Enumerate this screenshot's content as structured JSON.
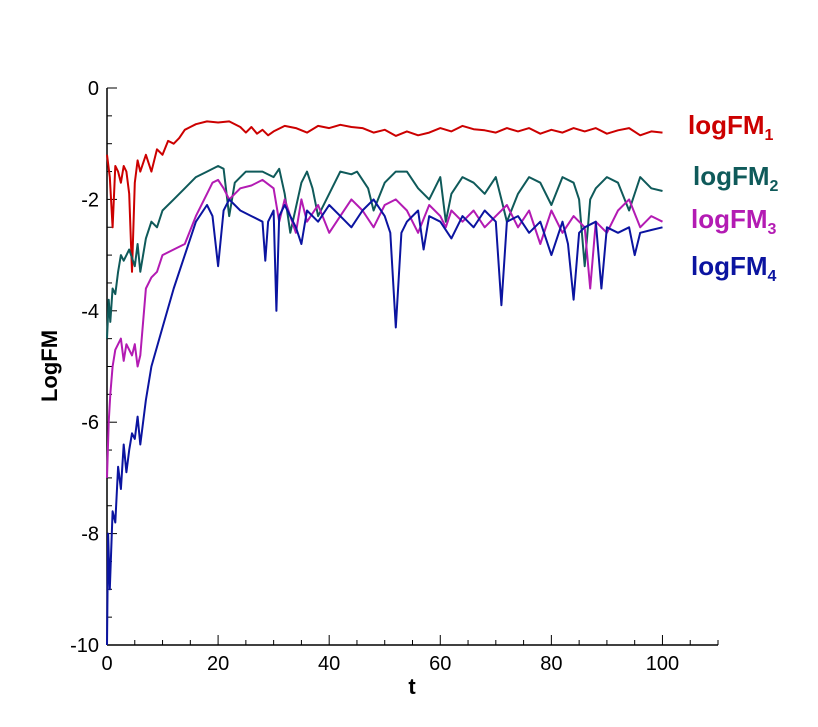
{
  "chart_data": {
    "type": "line",
    "title": "",
    "xlabel": "t",
    "ylabel": "LogFM",
    "xlim": [
      0,
      110
    ],
    "ylim": [
      -10,
      0
    ],
    "x_ticks": [
      "0",
      "20",
      "40",
      "60",
      "80",
      "100"
    ],
    "y_ticks": [
      "-10",
      "-8",
      "-6",
      "-4",
      "-2",
      "0"
    ],
    "grid": false,
    "legend_placement": "right",
    "series": [
      {
        "name": "logFM1",
        "label_main": "logFM",
        "label_sub": "1",
        "color": "#cc0000",
        "x": [
          0,
          0.5,
          1,
          1.5,
          2,
          2.5,
          3,
          3.5,
          4,
          4.5,
          5,
          5.5,
          6,
          7,
          8,
          9,
          10,
          11,
          12,
          13,
          14,
          15,
          16,
          18,
          20,
          22,
          24,
          25,
          26,
          27,
          28,
          29,
          30,
          32,
          34,
          36,
          38,
          40,
          42,
          44,
          46,
          48,
          50,
          52,
          54,
          56,
          58,
          60,
          62,
          64,
          66,
          68,
          70,
          72,
          74,
          76,
          78,
          80,
          82,
          84,
          86,
          88,
          90,
          92,
          94,
          96,
          98,
          100
        ],
        "y": [
          -1.2,
          -1.6,
          -2.5,
          -1.4,
          -1.5,
          -1.7,
          -1.4,
          -1.5,
          -1.9,
          -3.3,
          -1.7,
          -1.3,
          -1.5,
          -1.2,
          -1.5,
          -1.1,
          -1.2,
          -0.95,
          -1.0,
          -0.9,
          -0.75,
          -0.7,
          -0.65,
          -0.6,
          -0.62,
          -0.6,
          -0.7,
          -0.8,
          -0.7,
          -0.82,
          -0.75,
          -0.85,
          -0.78,
          -0.68,
          -0.72,
          -0.8,
          -0.68,
          -0.72,
          -0.66,
          -0.7,
          -0.72,
          -0.8,
          -0.75,
          -0.86,
          -0.78,
          -0.85,
          -0.8,
          -0.72,
          -0.78,
          -0.68,
          -0.74,
          -0.76,
          -0.8,
          -0.72,
          -0.78,
          -0.72,
          -0.82,
          -0.75,
          -0.8,
          -0.72,
          -0.78,
          -0.72,
          -0.82,
          -0.76,
          -0.72,
          -0.85,
          -0.78,
          -0.8
        ]
      },
      {
        "name": "logFM2",
        "label_main": "logFM",
        "label_sub": "2",
        "color": "#0f5a5a",
        "x": [
          0,
          0.3,
          0.6,
          1,
          1.5,
          2,
          2.5,
          3,
          4,
          5,
          5.5,
          6,
          7,
          8,
          9,
          10,
          12,
          14,
          16,
          18,
          20,
          21,
          22,
          23,
          25,
          28,
          30,
          31,
          32,
          33,
          35,
          36,
          37,
          38,
          40,
          42,
          44,
          45,
          47,
          48,
          50,
          52,
          54,
          56,
          58,
          60,
          61,
          62,
          64,
          66,
          68,
          70,
          71,
          72,
          74,
          76,
          78,
          80,
          82,
          84,
          85,
          86,
          87,
          88,
          90,
          92,
          94,
          96,
          98,
          100
        ],
        "y": [
          -4.5,
          -3.8,
          -4.2,
          -3.6,
          -3.7,
          -3.3,
          -3.0,
          -3.1,
          -2.9,
          -3.2,
          -2.8,
          -3.3,
          -2.7,
          -2.4,
          -2.5,
          -2.2,
          -2.0,
          -1.8,
          -1.6,
          -1.5,
          -1.4,
          -1.45,
          -2.3,
          -1.7,
          -1.5,
          -1.5,
          -1.6,
          -1.45,
          -1.9,
          -2.6,
          -1.7,
          -1.5,
          -1.8,
          -2.3,
          -1.9,
          -1.5,
          -1.55,
          -1.5,
          -1.8,
          -2.2,
          -1.7,
          -1.5,
          -1.5,
          -1.8,
          -2.0,
          -1.6,
          -2.4,
          -1.9,
          -1.6,
          -1.7,
          -1.9,
          -1.6,
          -2.0,
          -2.4,
          -1.9,
          -1.6,
          -1.7,
          -2.1,
          -1.6,
          -1.7,
          -2.0,
          -3.2,
          -2.0,
          -1.8,
          -1.6,
          -1.7,
          -2.2,
          -1.6,
          -1.8,
          -1.85
        ]
      },
      {
        "name": "logFM3",
        "label_main": "logFM",
        "label_sub": "3",
        "color": "#b31bb3",
        "x": [
          0,
          0.3,
          0.6,
          1,
          1.5,
          2,
          2.5,
          3,
          3.5,
          4,
          4.5,
          5,
          5.5,
          6,
          7,
          8,
          9,
          10,
          12,
          14,
          16,
          18,
          19,
          20,
          21,
          22,
          24,
          26,
          28,
          30,
          31,
          32,
          34,
          35,
          36,
          38,
          40,
          42,
          44,
          46,
          48,
          50,
          52,
          54,
          56,
          58,
          60,
          61,
          62,
          64,
          66,
          68,
          70,
          72,
          74,
          76,
          78,
          80,
          82,
          84,
          86,
          87,
          88,
          90,
          92,
          94,
          96,
          98,
          100
        ],
        "y": [
          -7.0,
          -6.0,
          -5.5,
          -5.0,
          -4.7,
          -4.6,
          -4.5,
          -4.9,
          -4.6,
          -4.7,
          -4.8,
          -4.6,
          -5.0,
          -4.8,
          -3.6,
          -3.4,
          -3.3,
          -3.0,
          -2.9,
          -2.8,
          -2.3,
          -1.9,
          -1.7,
          -1.65,
          -1.8,
          -2.0,
          -1.8,
          -1.75,
          -1.65,
          -1.8,
          -2.4,
          -2.0,
          -2.6,
          -2.0,
          -2.4,
          -2.1,
          -2.6,
          -2.3,
          -2.0,
          -2.2,
          -2.5,
          -2.1,
          -2.0,
          -2.2,
          -2.6,
          -2.1,
          -2.3,
          -2.5,
          -2.2,
          -2.4,
          -2.2,
          -2.5,
          -2.3,
          -2.1,
          -2.5,
          -2.2,
          -2.8,
          -2.2,
          -2.6,
          -2.3,
          -2.5,
          -3.6,
          -2.4,
          -2.6,
          -2.2,
          -2.0,
          -2.5,
          -2.3,
          -2.4
        ]
      },
      {
        "name": "logFM4",
        "label_main": "logFM",
        "label_sub": "4",
        "color": "#0b14a0",
        "x": [
          0,
          0.2,
          0.5,
          1,
          1.5,
          2,
          2.5,
          3,
          3.5,
          4,
          4.5,
          5,
          5.5,
          6,
          7,
          8,
          10,
          12,
          14,
          16,
          18,
          19,
          20,
          21,
          22,
          24,
          26,
          28,
          28.5,
          29,
          30,
          30.5,
          31,
          32,
          34,
          35,
          36,
          38,
          40,
          42,
          44,
          46,
          48,
          50,
          51,
          52,
          53,
          54,
          56,
          57,
          58,
          60,
          62,
          64,
          66,
          68,
          70,
          71,
          72,
          74,
          76,
          78,
          80,
          82,
          83,
          84,
          85,
          86,
          88,
          89,
          90,
          92,
          94,
          95,
          96,
          98,
          100
        ],
        "y": [
          -10.0,
          -8.0,
          -9.0,
          -7.6,
          -7.8,
          -6.8,
          -7.2,
          -6.4,
          -6.9,
          -6.5,
          -6.2,
          -6.3,
          -5.9,
          -6.4,
          -5.6,
          -5.0,
          -4.3,
          -3.6,
          -3.0,
          -2.4,
          -2.1,
          -2.3,
          -3.2,
          -2.2,
          -2.0,
          -2.2,
          -2.3,
          -2.4,
          -3.1,
          -2.4,
          -2.2,
          -4.0,
          -2.3,
          -2.1,
          -2.5,
          -2.8,
          -2.2,
          -2.4,
          -2.1,
          -2.3,
          -2.5,
          -2.2,
          -2.0,
          -2.3,
          -2.6,
          -4.3,
          -2.6,
          -2.4,
          -2.2,
          -2.9,
          -2.3,
          -2.4,
          -2.7,
          -2.3,
          -2.5,
          -2.2,
          -2.4,
          -3.9,
          -2.4,
          -2.3,
          -2.6,
          -2.4,
          -3.0,
          -2.4,
          -2.8,
          -3.8,
          -2.6,
          -2.5,
          -2.4,
          -3.6,
          -2.5,
          -2.6,
          -2.5,
          -3.0,
          -2.6,
          -2.55,
          -2.5
        ]
      }
    ]
  }
}
